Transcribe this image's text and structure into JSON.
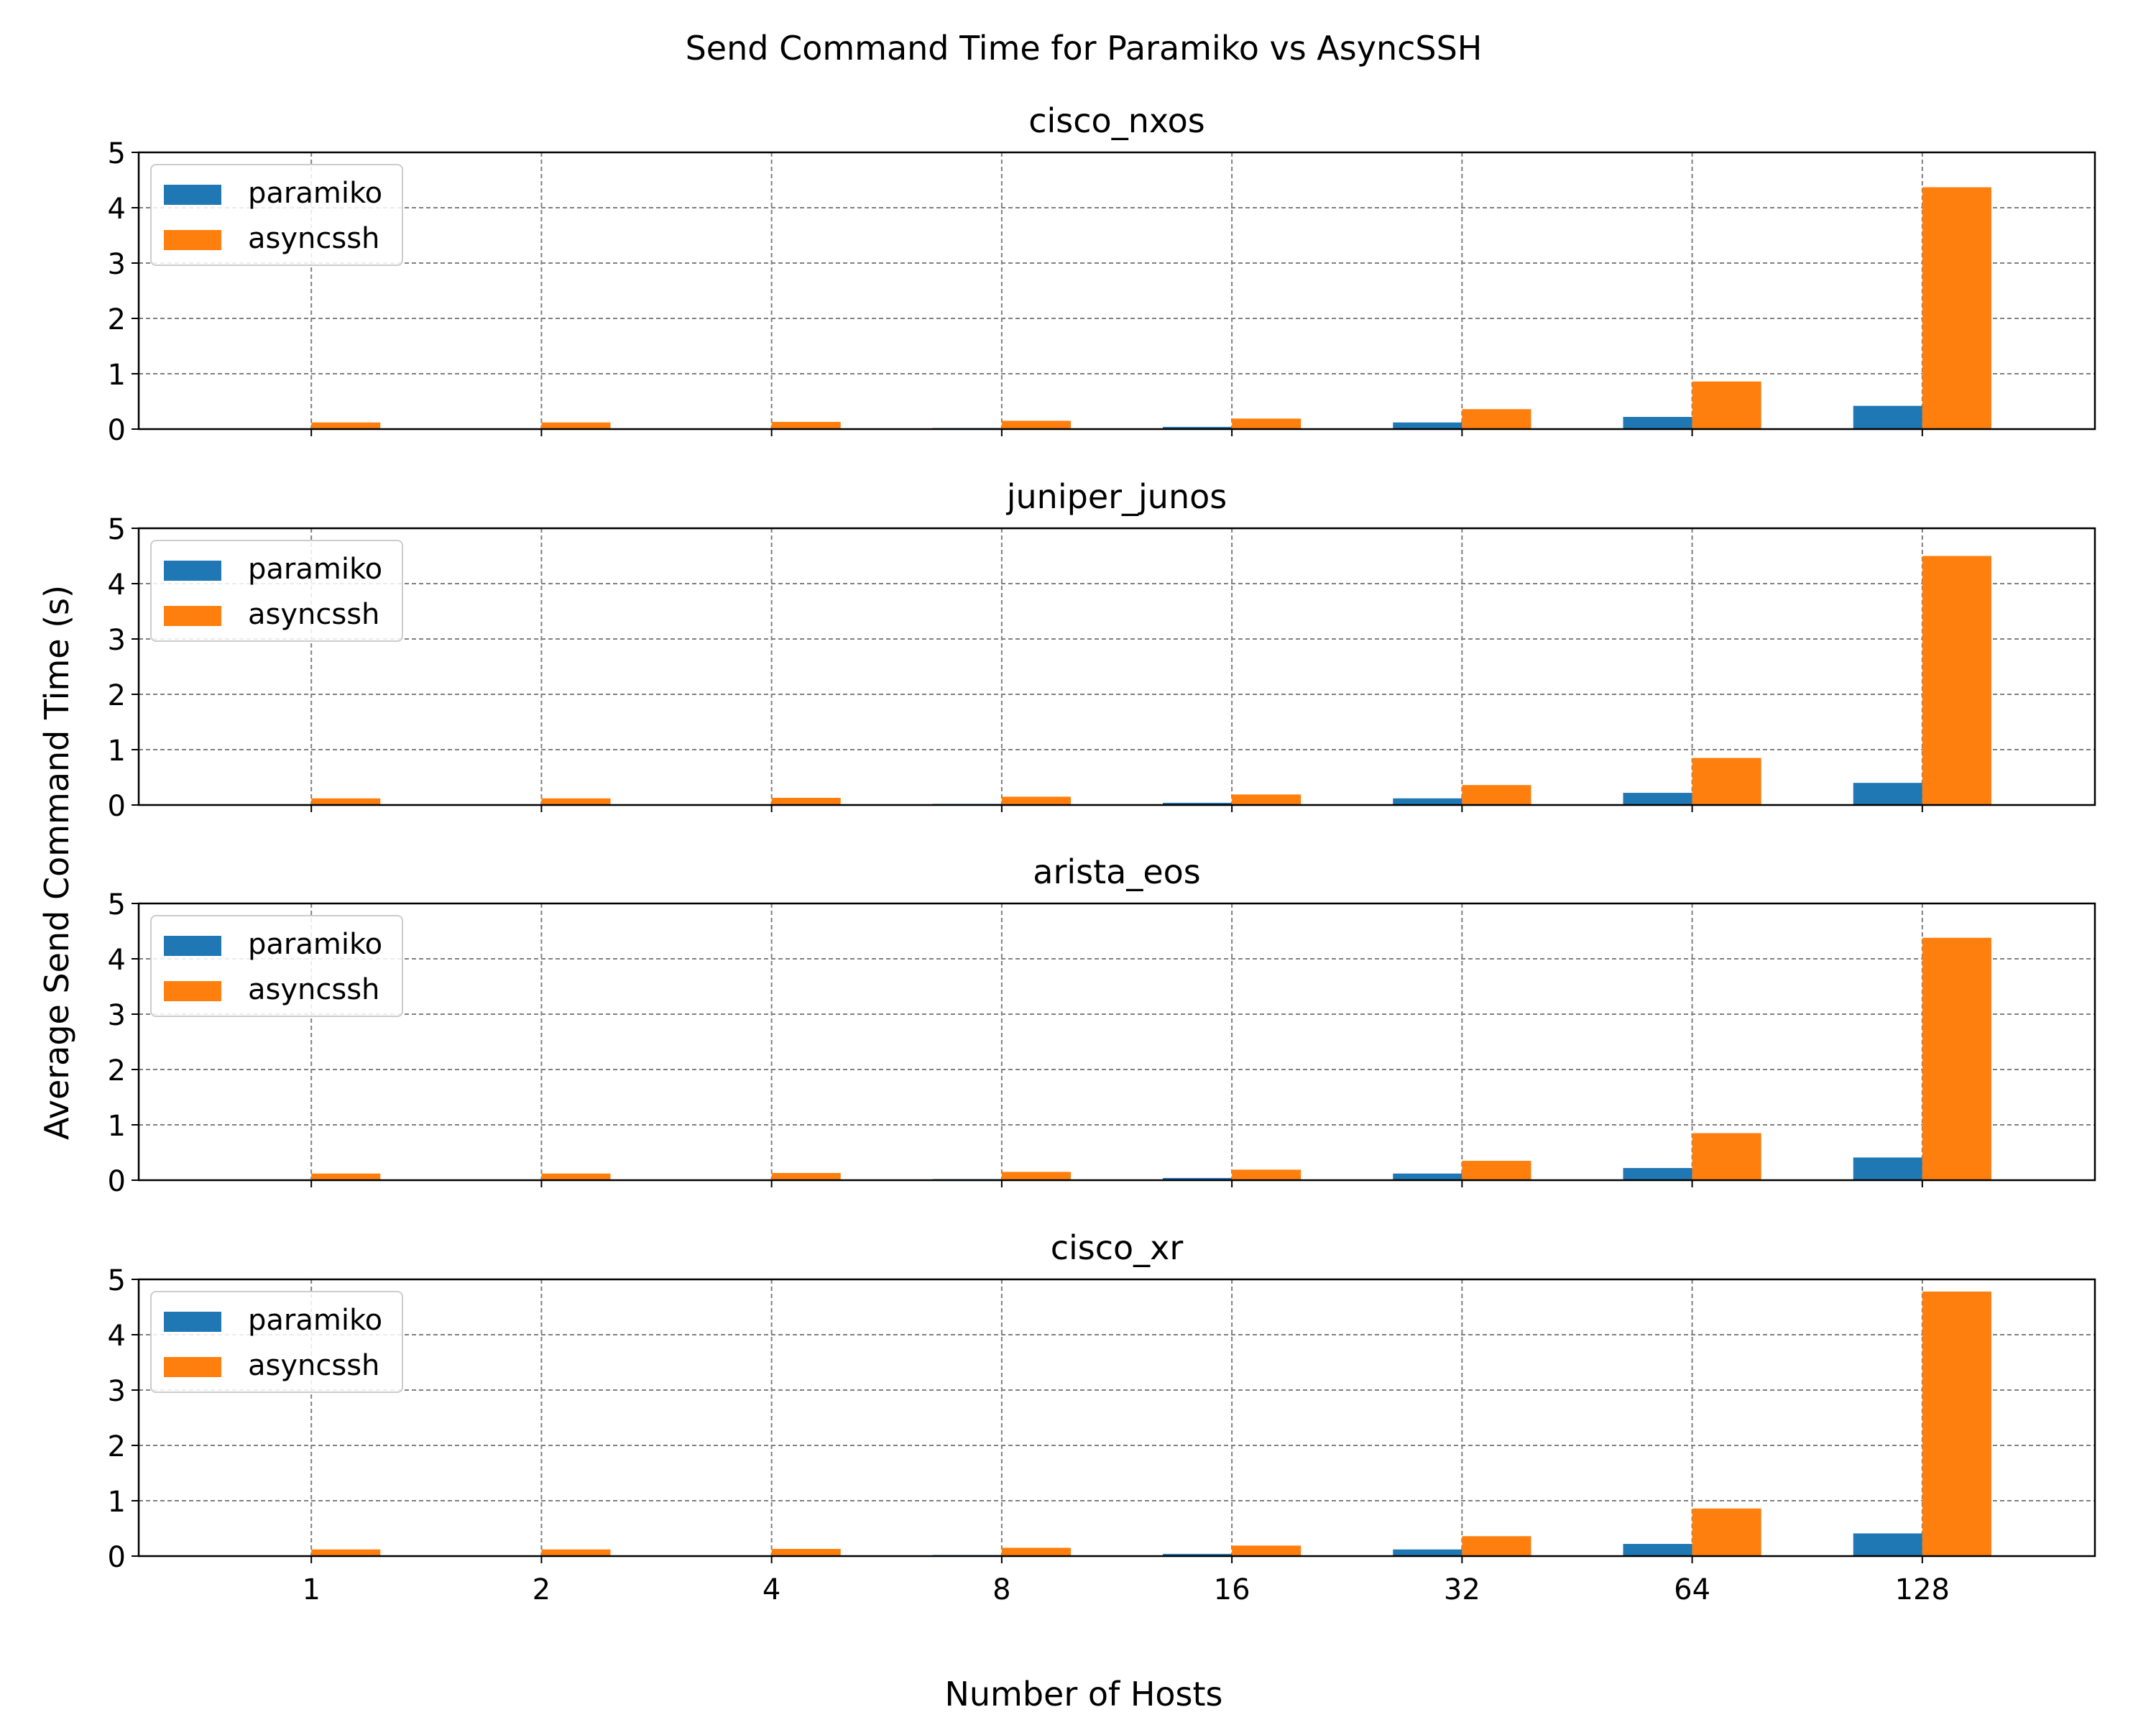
{
  "figure": {
    "suptitle": "Send Command Time for Paramiko vs AsyncSSH",
    "xlabel": "Number of Hosts",
    "ylabel": "Average Send Command Time (s)"
  },
  "colors": {
    "paramiko": "#1f77b4",
    "asyncssh": "#ff7f0e",
    "grid": "#808080"
  },
  "chart_data": [
    {
      "type": "bar",
      "title": "cisco_nxos",
      "categories": [
        "1",
        "2",
        "4",
        "8",
        "16",
        "32",
        "64",
        "128"
      ],
      "series": [
        {
          "name": "paramiko",
          "values": [
            0.01,
            0.01,
            0.01,
            0.02,
            0.04,
            0.12,
            0.22,
            0.42
          ]
        },
        {
          "name": "asyncssh",
          "values": [
            0.12,
            0.12,
            0.13,
            0.15,
            0.19,
            0.36,
            0.86,
            4.37
          ]
        }
      ],
      "ylim": [
        0,
        5
      ],
      "yticks": [
        "0",
        "1",
        "2",
        "3",
        "4",
        "5"
      ],
      "grid": true,
      "legend": "upper left"
    },
    {
      "type": "bar",
      "title": "juniper_junos",
      "categories": [
        "1",
        "2",
        "4",
        "8",
        "16",
        "32",
        "64",
        "128"
      ],
      "series": [
        {
          "name": "paramiko",
          "values": [
            0.01,
            0.01,
            0.01,
            0.02,
            0.04,
            0.12,
            0.22,
            0.4
          ]
        },
        {
          "name": "asyncssh",
          "values": [
            0.12,
            0.12,
            0.13,
            0.15,
            0.19,
            0.36,
            0.85,
            4.5
          ]
        }
      ],
      "ylim": [
        0,
        5
      ],
      "yticks": [
        "0",
        "1",
        "2",
        "3",
        "4",
        "5"
      ],
      "grid": true,
      "legend": "upper left"
    },
    {
      "type": "bar",
      "title": "arista_eos",
      "categories": [
        "1",
        "2",
        "4",
        "8",
        "16",
        "32",
        "64",
        "128"
      ],
      "series": [
        {
          "name": "paramiko",
          "values": [
            0.01,
            0.01,
            0.01,
            0.02,
            0.04,
            0.12,
            0.22,
            0.41
          ]
        },
        {
          "name": "asyncssh",
          "values": [
            0.12,
            0.12,
            0.13,
            0.15,
            0.19,
            0.35,
            0.85,
            4.38
          ]
        }
      ],
      "ylim": [
        0,
        5
      ],
      "yticks": [
        "0",
        "1",
        "2",
        "3",
        "4",
        "5"
      ],
      "grid": true,
      "legend": "upper left"
    },
    {
      "type": "bar",
      "title": "cisco_xr",
      "categories": [
        "1",
        "2",
        "4",
        "8",
        "16",
        "32",
        "64",
        "128"
      ],
      "series": [
        {
          "name": "paramiko",
          "values": [
            0.01,
            0.01,
            0.01,
            0.02,
            0.04,
            0.12,
            0.22,
            0.41
          ]
        },
        {
          "name": "asyncssh",
          "values": [
            0.12,
            0.12,
            0.13,
            0.15,
            0.19,
            0.36,
            0.86,
            4.78
          ]
        }
      ],
      "ylim": [
        0,
        5
      ],
      "yticks": [
        "0",
        "1",
        "2",
        "3",
        "4",
        "5"
      ],
      "grid": true,
      "legend": "upper left"
    }
  ]
}
